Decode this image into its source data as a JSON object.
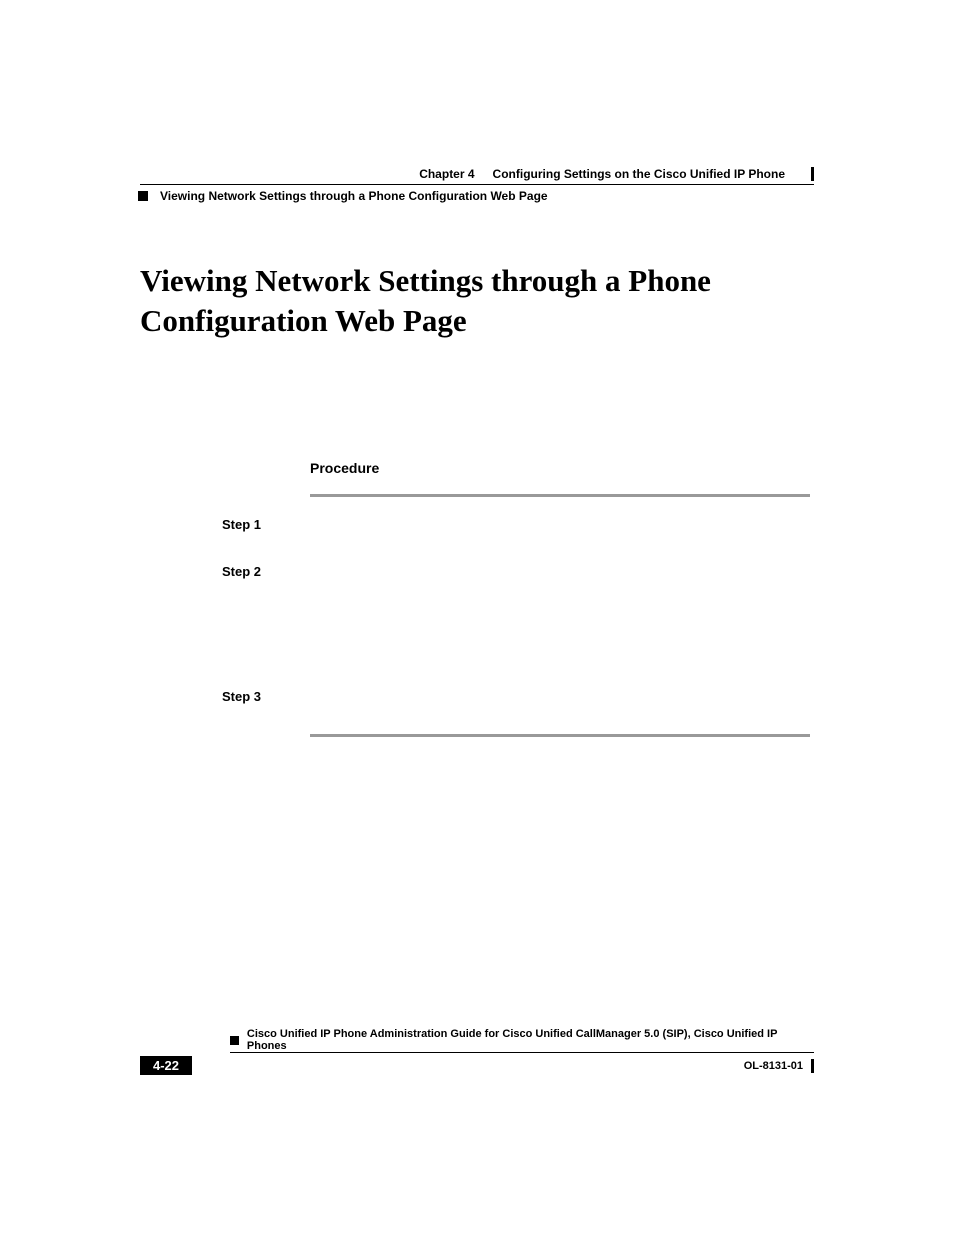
{
  "header": {
    "chapter": "Chapter 4",
    "chapter_title": "Configuring Settings on the Cisco Unified IP Phone",
    "section_title": "Viewing Network Settings through a Phone Configuration Web Page"
  },
  "main": {
    "heading": "Viewing Network Settings through a Phone Configuration Web Page",
    "procedure_label": "Procedure",
    "steps": [
      {
        "label": "Step 1"
      },
      {
        "label": "Step 2"
      },
      {
        "label": "Step 3"
      }
    ]
  },
  "footer": {
    "guide_title": "Cisco Unified IP Phone Administration Guide for Cisco Unified CallManager 5.0 (SIP), Cisco Unified IP Phones",
    "page_number": "4-22",
    "doc_id": "OL-8131-01"
  },
  "colors": {
    "text": "#000000",
    "background": "#ffffff",
    "rule_gray": "#999999",
    "page_box_bg": "#000000",
    "page_box_text": "#ffffff"
  },
  "typography": {
    "heading_font": "Georgia, Times New Roman, serif",
    "label_font": "Arial, Helvetica, sans-serif",
    "heading_size_pt": 24,
    "label_size_pt": 10,
    "step_label_size_pt": 10
  }
}
